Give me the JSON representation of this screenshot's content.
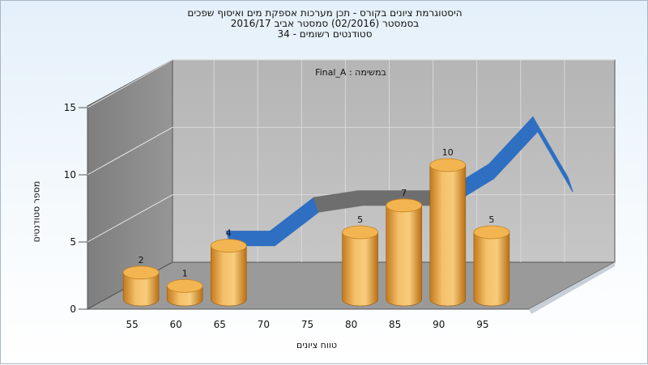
{
  "chart_data": {
    "type": "bar",
    "title": "היסטוגרמת ציונים בקורס - תכן מערכות אספקת מים ואיסוף שפכים",
    "subtitle": "בסמסטר  (02/2016)  סמסטר אביב 2016/17",
    "subtitle2": "סטודנטים רשומים - 34",
    "annotation": "במשימה : Final_A",
    "xlabel": "טווח ציונים",
    "ylabel": "מספר סטודנטים",
    "x_ticks": [
      "55",
      "60",
      "65",
      "70",
      "75",
      "80",
      "85",
      "90",
      "95"
    ],
    "y_ticks": [
      "0",
      "5",
      "10",
      "15"
    ],
    "ylim": [
      0,
      15
    ],
    "grid": true,
    "bars": [
      {
        "x": 55,
        "value": 2
      },
      {
        "x": 60,
        "value": 1
      },
      {
        "x": 65,
        "value": 4
      },
      {
        "x": 80,
        "value": 5
      },
      {
        "x": 85,
        "value": 7
      },
      {
        "x": 90,
        "value": 10
      },
      {
        "x": 95,
        "value": 5
      }
    ],
    "curve": {
      "values": [
        {
          "x": 60,
          "y": 4
        },
        {
          "x": 65,
          "y": 4
        },
        {
          "x": 70,
          "y": 6.5
        },
        {
          "x": 75,
          "y": 7
        },
        {
          "x": 80,
          "y": 7
        },
        {
          "x": 85,
          "y": 7
        },
        {
          "x": 90,
          "y": 9
        },
        {
          "x": 95,
          "y": 12.5
        },
        {
          "x": 99,
          "y": 8
        }
      ]
    },
    "colors": {
      "bar": "#e8a53c",
      "curve_low": "#2e6fc2",
      "curve_mid": "#6e6e6e"
    }
  }
}
